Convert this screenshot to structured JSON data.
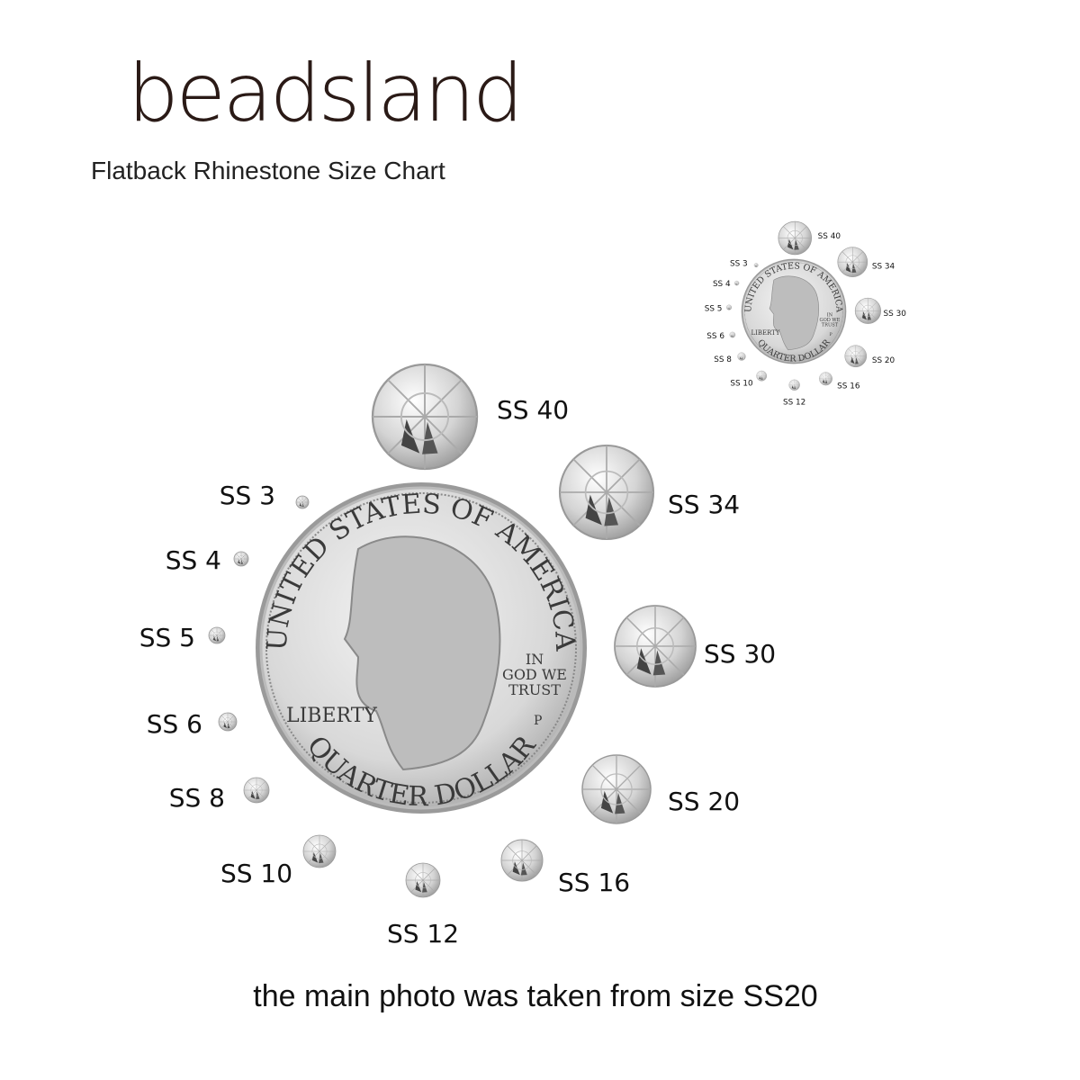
{
  "brand": {
    "logo_text": "beadsland"
  },
  "title": "Flatback Rhinestone Size Chart",
  "caption": "the main photo was taken from size SS20",
  "coin": {
    "top_text": "UNITED STATES OF AMERICA",
    "bottom_text": "QUARTER DOLLAR",
    "liberty": "LIBERTY",
    "motto_lines": [
      "IN",
      "GOD WE",
      "TRUST"
    ],
    "mint_mark": "P"
  },
  "sizes": [
    "SS 3",
    "SS 4",
    "SS 5",
    "SS 6",
    "SS 8",
    "SS 10",
    "SS 12",
    "SS 16",
    "SS 20",
    "SS 30",
    "SS 34",
    "SS 40"
  ],
  "colors": {
    "text": "#111111",
    "logo": "#2a1a16",
    "silver": "#c8c8c8"
  }
}
